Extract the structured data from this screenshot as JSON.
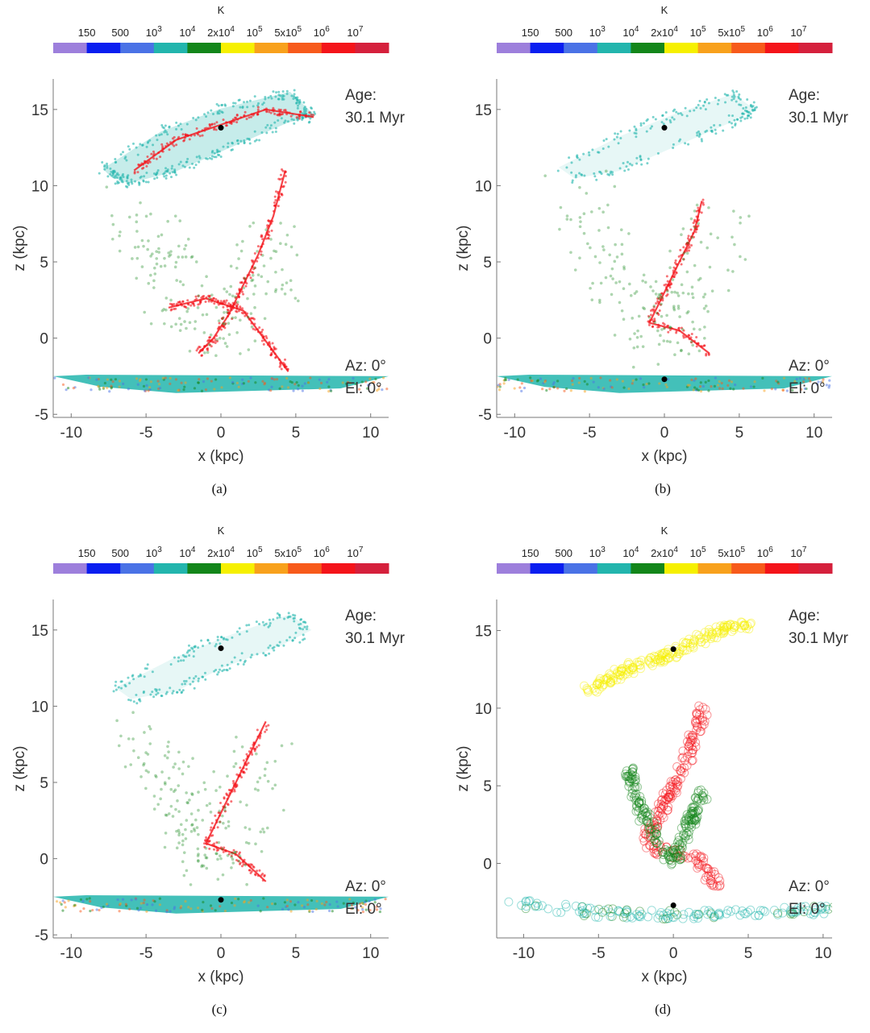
{
  "colorbar": {
    "unit": "K",
    "tick_labels": [
      "150",
      "500",
      "10^3",
      "10^4",
      "2x10^4",
      "10^5",
      "5x10^5",
      "10^6",
      "10^7"
    ],
    "colors": [
      "#9d7fdc",
      "#0a1ef0",
      "#4a72e6",
      "#22b5ad",
      "#13861a",
      "#f6f000",
      "#f8a11c",
      "#f75a1b",
      "#f4141a",
      "#d5203c"
    ]
  },
  "chart_data": [
    {
      "type": "scatter",
      "caption": "(a)",
      "xlabel": "x (kpc)",
      "ylabel": "z (kpc)",
      "xlim": [
        -11.2,
        11.2
      ],
      "ylim": [
        -5.2,
        17
      ],
      "xticks": [
        -10,
        -5,
        0,
        5,
        10
      ],
      "yticks": [
        -5,
        0,
        5,
        10,
        15
      ],
      "age_label": "Age:",
      "age_value": "30.1 Myr",
      "az_label": "Az: 0°",
      "el_label": "El: 0°",
      "black_points": [
        {
          "x": 0,
          "y": 13.8
        }
      ],
      "series": [
        {
          "color": "#22b5ad",
          "style": "dense-outline",
          "x": [
            -7.8,
            -4.0,
            0.0,
            4.6,
            6.2,
            4.5,
            0.5,
            -3.0,
            -6.2,
            -7.5
          ],
          "y": [
            11.1,
            13.5,
            15.0,
            16.1,
            14.6,
            14.2,
            12.5,
            11.0,
            10.2,
            10.8
          ]
        },
        {
          "color": "#f4141a",
          "style": "filament",
          "x": [
            -5.8,
            -3.0,
            0.0,
            3.0,
            6.2
          ],
          "y": [
            11.0,
            13.0,
            14.0,
            15.0,
            14.5
          ]
        },
        {
          "color": "#22b5ad",
          "style": "disk",
          "x": [
            -11.2,
            -5.0,
            0.0,
            5.0,
            11.2
          ],
          "y": [
            -2.5,
            -2.8,
            -3.0,
            -2.8,
            -2.5
          ]
        },
        {
          "color": "#f4141a",
          "style": "filament",
          "x": [
            4.3,
            3.5,
            2.5,
            1.5,
            0.5,
            -0.5,
            -1.5
          ],
          "y": [
            11.0,
            8.0,
            5.5,
            3.5,
            1.5,
            0.0,
            -1.0
          ]
        },
        {
          "color": "#f4141a",
          "style": "filament",
          "x": [
            -3.5,
            -1.0,
            1.5,
            4.5
          ],
          "y": [
            2.0,
            2.6,
            1.8,
            -2.2
          ]
        },
        {
          "color": "#13861a",
          "style": "cloud",
          "x": [
            -6.0,
            -4.0,
            -2.0,
            0.0,
            2.0,
            4.0
          ],
          "y": [
            8.0,
            5.0,
            2.0,
            0.5,
            3.0,
            6.0
          ]
        }
      ]
    },
    {
      "type": "scatter",
      "caption": "(b)",
      "xlabel": "x (kpc)",
      "ylabel": "z (kpc)",
      "xlim": [
        -11.2,
        11.2
      ],
      "ylim": [
        -5.2,
        17
      ],
      "xticks": [
        -10,
        -5,
        0,
        5,
        10
      ],
      "yticks": [
        -5,
        0,
        5,
        10,
        15
      ],
      "age_label": "Age:",
      "age_value": "30.1 Myr",
      "az_label": "Az: 0°",
      "el_label": "El: 0°",
      "black_points": [
        {
          "x": 0,
          "y": 13.8
        },
        {
          "x": 0,
          "y": -2.7
        }
      ],
      "series": [
        {
          "color": "#22b5ad",
          "style": "sparse-outline",
          "x": [
            -7.0,
            -3.0,
            0.5,
            4.6,
            6.0,
            4.5,
            0.5,
            -3.0,
            -6.0
          ],
          "y": [
            11.2,
            13.2,
            14.6,
            16.0,
            15.0,
            14.2,
            12.5,
            11.0,
            10.5
          ]
        },
        {
          "color": "#22b5ad",
          "style": "disk",
          "x": [
            -11.2,
            -5.0,
            0.0,
            5.0,
            11.2
          ],
          "y": [
            -2.5,
            -2.8,
            -3.0,
            -2.8,
            -2.5
          ]
        },
        {
          "color": "#f4141a",
          "style": "filament",
          "x": [
            2.5,
            2.0,
            1.0,
            0.0,
            -1.0,
            1.0,
            3.0
          ],
          "y": [
            9.0,
            7.0,
            5.0,
            3.0,
            1.0,
            0.5,
            -1.0
          ]
        },
        {
          "color": "#13861a",
          "style": "cloud",
          "x": [
            -6.0,
            -4.0,
            -2.0,
            0.0,
            2.0,
            4.0
          ],
          "y": [
            9.0,
            6.0,
            2.0,
            0.0,
            3.5,
            8.0
          ]
        }
      ]
    },
    {
      "type": "scatter",
      "caption": "(c)",
      "xlabel": "x (kpc)",
      "ylabel": "z (kpc)",
      "xlim": [
        -11.2,
        11.2
      ],
      "ylim": [
        -5.2,
        17
      ],
      "xticks": [
        -10,
        -5,
        0,
        5,
        10
      ],
      "yticks": [
        -5,
        0,
        5,
        10,
        15
      ],
      "age_label": "Age:",
      "age_value": "30.1 Myr",
      "az_label": "Az: 0°",
      "el_label": "El: 0°",
      "black_points": [
        {
          "x": 0,
          "y": 13.8
        },
        {
          "x": 0,
          "y": -2.7
        }
      ],
      "series": [
        {
          "color": "#22b5ad",
          "style": "sparse-outline",
          "x": [
            -7.0,
            -3.0,
            0.5,
            4.6,
            6.0,
            4.0,
            0.0,
            -3.0,
            -6.0
          ],
          "y": [
            11.2,
            13.2,
            14.6,
            16.0,
            15.0,
            14.0,
            12.5,
            11.0,
            10.5
          ]
        },
        {
          "color": "#22b5ad",
          "style": "disk",
          "x": [
            -11.2,
            -5.0,
            0.0,
            5.0,
            11.2
          ],
          "y": [
            -2.5,
            -2.8,
            -3.0,
            -2.8,
            -2.5
          ]
        },
        {
          "color": "#f4141a",
          "style": "filament",
          "x": [
            3.0,
            2.0,
            1.0,
            0.0,
            -1.0,
            1.0,
            3.0
          ],
          "y": [
            9.0,
            7.0,
            5.0,
            3.0,
            1.0,
            0.3,
            -1.5
          ]
        },
        {
          "color": "#13861a",
          "style": "cloud",
          "x": [
            -5.0,
            -3.0,
            -1.5,
            0.0,
            1.5,
            3.0
          ],
          "y": [
            8.0,
            5.0,
            2.0,
            0.0,
            2.5,
            7.0
          ]
        }
      ]
    },
    {
      "type": "scatter",
      "caption": "(d)",
      "xlabel": "x (kpc)",
      "ylabel": "z (kpc)",
      "xlim": [
        -11.8,
        10.6
      ],
      "ylim": [
        -4.8,
        17
      ],
      "xticks": [
        -10,
        -5,
        0,
        5,
        10
      ],
      "yticks": [
        0,
        5,
        10,
        15
      ],
      "age_label": "Age:",
      "age_value": "30.1 Myr",
      "az_label": "Az: 0°",
      "el_label": "El: 0°",
      "black_points": [
        {
          "x": 0,
          "y": 13.8
        },
        {
          "x": 0,
          "y": -2.7
        }
      ],
      "series": [
        {
          "color": "#f6f000",
          "style": "open-circles",
          "x": [
            -6.0,
            -3.0,
            0.0,
            3.0,
            5.0
          ],
          "y": [
            11.0,
            12.5,
            13.5,
            15.0,
            15.5
          ]
        },
        {
          "color": "#22b5ad",
          "style": "open-disk",
          "x": [
            -11.0,
            -5.0,
            0.0,
            5.0,
            10.5
          ],
          "y": [
            -2.5,
            -3.2,
            -3.3,
            -3.2,
            -3.0
          ]
        },
        {
          "color": "#f4141a",
          "style": "open-circles",
          "x": [
            2.0,
            1.0,
            0.0,
            -1.0,
            -2.0,
            1.5,
            3.0
          ],
          "y": [
            10.0,
            7.0,
            5.0,
            3.0,
            1.0,
            0.5,
            -1.5
          ]
        },
        {
          "color": "#13861a",
          "style": "open-circles",
          "x": [
            -3.0,
            -2.0,
            0.0,
            1.0,
            2.0
          ],
          "y": [
            6.0,
            3.0,
            0.0,
            2.5,
            4.5
          ]
        }
      ]
    }
  ]
}
